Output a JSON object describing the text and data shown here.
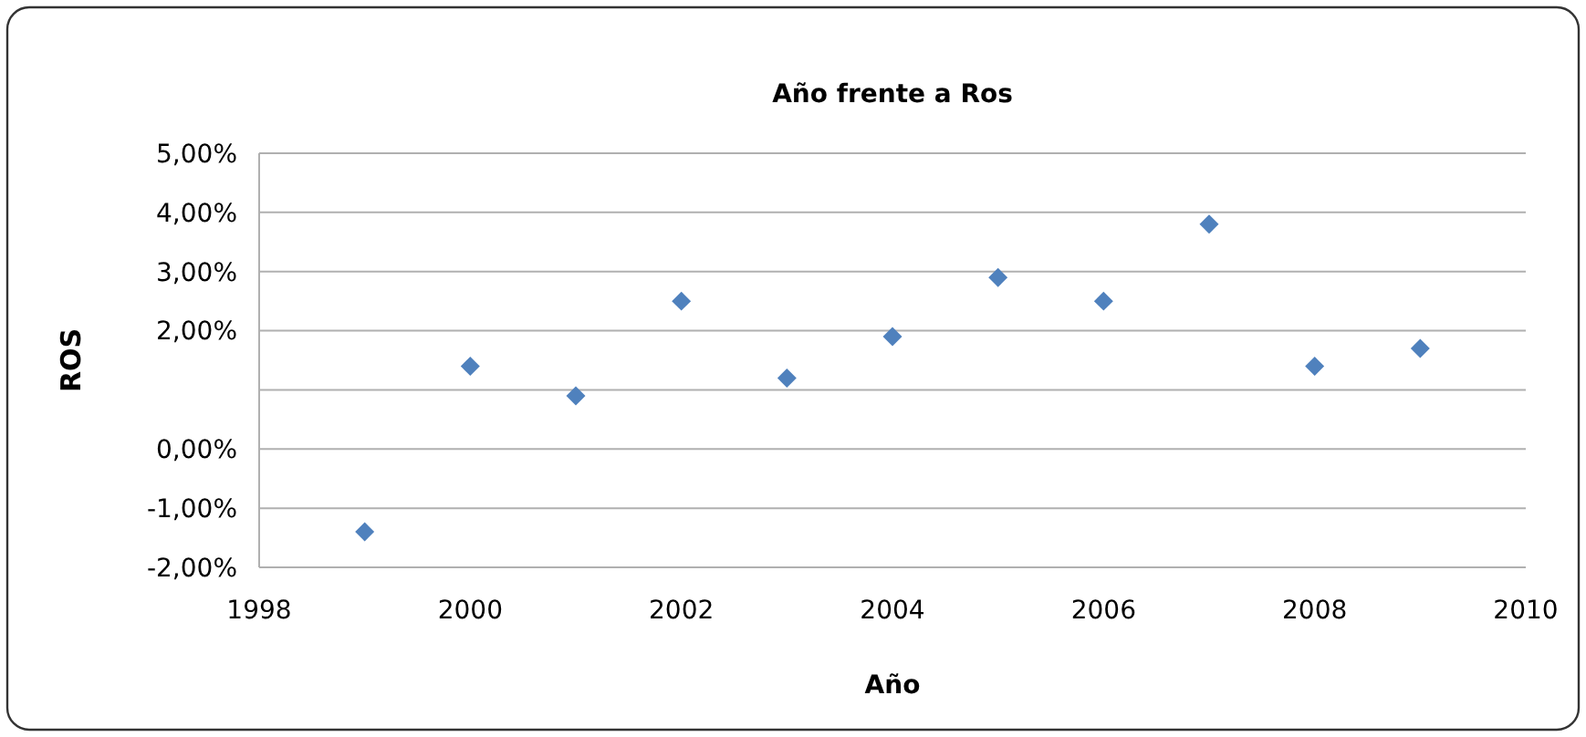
{
  "chart_data": {
    "type": "scatter",
    "title": "Año frente a Ros",
    "xlabel": "Año",
    "ylabel": "ROS",
    "x": [
      1999,
      2000,
      2001,
      2002,
      2003,
      2004,
      2005,
      2006,
      2007,
      2008,
      2009
    ],
    "series": [
      {
        "color": "#4f81bd",
        "values": [
          -1.4,
          1.4,
          0.9,
          2.5,
          1.2,
          1.9,
          2.9,
          2.5,
          3.8,
          1.4,
          1.7
        ]
      }
    ],
    "xlim": [
      1998,
      2010
    ],
    "xticks": [
      1998,
      2000,
      2002,
      2004,
      2006,
      2008,
      2010
    ],
    "ylim": [
      -2,
      5
    ],
    "yticks": [
      {
        "value": -2,
        "label": "-2,00%"
      },
      {
        "value": -1,
        "label": "-1,00%"
      },
      {
        "value": 0,
        "label": "0,00%"
      },
      {
        "value": 1,
        "label": null
      },
      {
        "value": 2,
        "label": "2,00%"
      },
      {
        "value": 3,
        "label": "3,00%"
      },
      {
        "value": 4,
        "label": "4,00%"
      },
      {
        "value": 5,
        "label": "5,00%"
      }
    ],
    "grid": "y",
    "marker": "diamond"
  }
}
